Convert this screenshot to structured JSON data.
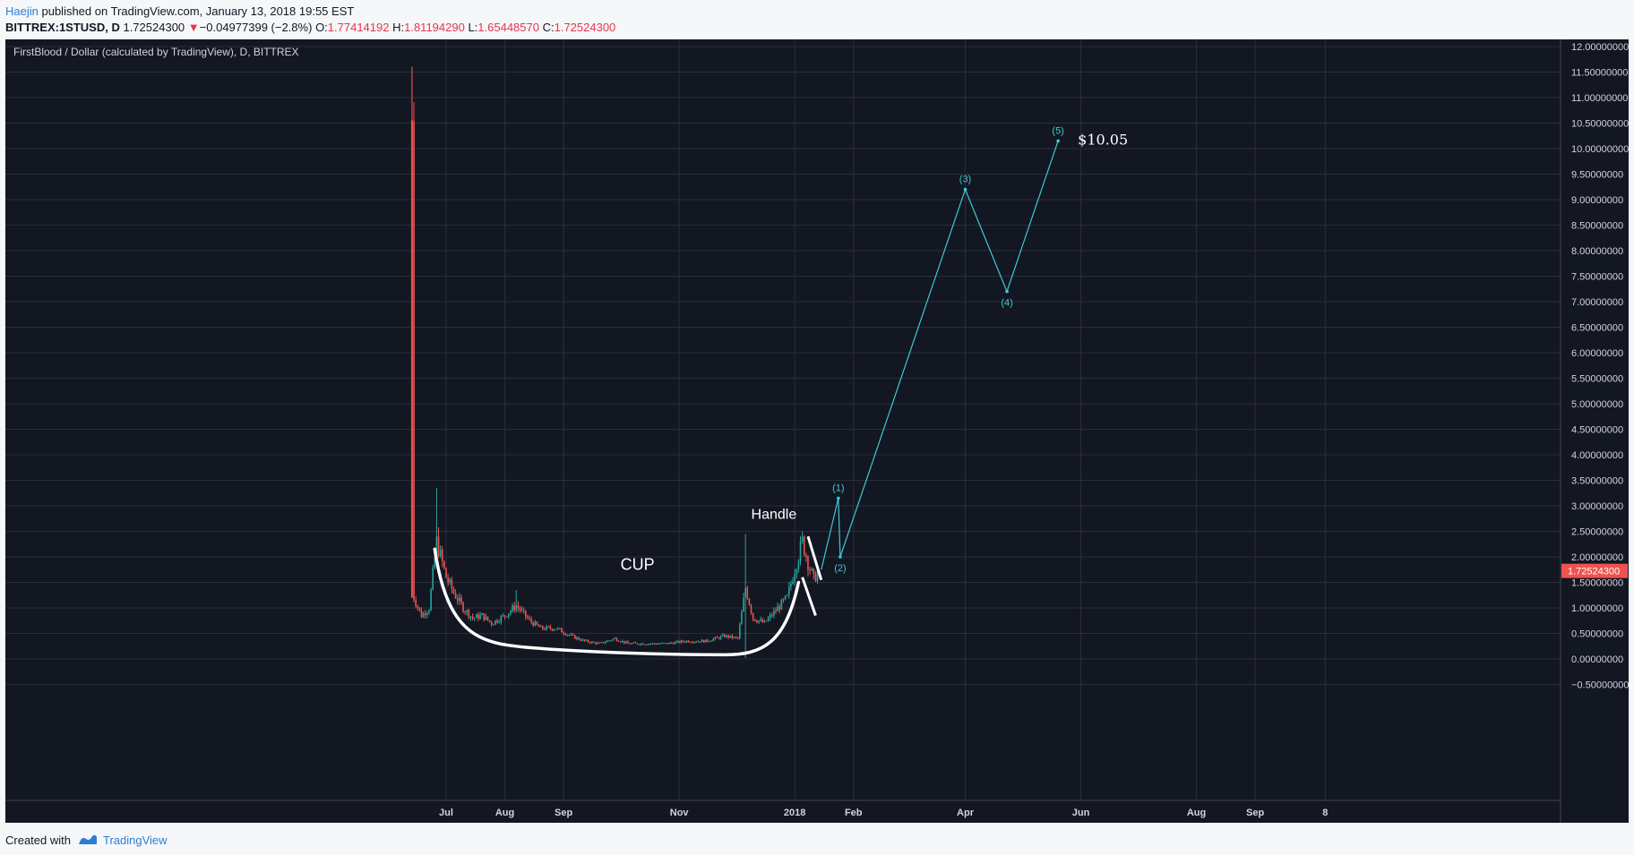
{
  "header": {
    "author": "Haejin",
    "published_text": "published on TradingView.com, January 13, 2018 19:55 EST",
    "symbol": "BITTREX:1STUSD, D",
    "last_price": "1.72524300",
    "change_arrow": "▼",
    "change": "−0.04977399 (−2.8%)",
    "open_label": "O:",
    "open": "1.77414192",
    "high_label": "H:",
    "high": "1.81194290",
    "low_label": "L:",
    "low": "1.65448570",
    "close_label": "C:",
    "close": "1.72524300"
  },
  "footer": {
    "created_with": "Created with",
    "brand": "TradingView"
  },
  "colors": {
    "background": "#131722",
    "grid": "#2a2e39",
    "up": "#26a69a",
    "down": "#ef5350",
    "wave": "#3fc7d6",
    "annotation": "#ffffff",
    "price_tag": "#ef5350"
  },
  "chart_data": {
    "type": "candlestick",
    "title": "FirstBlood / Dollar (calculated by TradingView), D, BITTREX",
    "y_ticks": [
      "12.00000000",
      "11.50000000",
      "11.00000000",
      "10.50000000",
      "10.00000000",
      "9.50000000",
      "9.00000000",
      "8.50000000",
      "8.00000000",
      "7.50000000",
      "7.00000000",
      "6.50000000",
      "6.00000000",
      "5.50000000",
      "5.00000000",
      "4.50000000",
      "4.00000000",
      "3.50000000",
      "3.00000000",
      "2.50000000",
      "2.00000000",
      "1.50000000",
      "1.00000000",
      "0.50000000",
      "0.00000000",
      "−0.50000000"
    ],
    "y_values": [
      12,
      11.5,
      11,
      10.5,
      10,
      9.5,
      9,
      8.5,
      8,
      7.5,
      7,
      6.5,
      6,
      5.5,
      5,
      4.5,
      4,
      3.5,
      3,
      2.5,
      2,
      1.5,
      1,
      0.5,
      0,
      -0.5
    ],
    "ylim": [
      -0.5,
      12
    ],
    "x_ticks": [
      {
        "label": "Jul",
        "date": "2017-07-01"
      },
      {
        "label": "Aug",
        "date": "2017-08-01"
      },
      {
        "label": "Sep",
        "date": "2017-09-01"
      },
      {
        "label": "Nov",
        "date": "2017-11-01"
      },
      {
        "label": "2018",
        "date": "2018-01-01"
      },
      {
        "label": "Feb",
        "date": "2018-02-01"
      },
      {
        "label": "Apr",
        "date": "2018-04-01"
      },
      {
        "label": "Jun",
        "date": "2018-06-01"
      },
      {
        "label": "Aug",
        "date": "2018-08-01"
      },
      {
        "label": "Sep",
        "date": "2018-09-01"
      },
      {
        "label": "8",
        "date": "2018-10-08"
      }
    ],
    "price_series": [
      {
        "date": "2017-06-13",
        "price": 10.55,
        "high": 11.6
      },
      {
        "date": "2017-06-14",
        "price": 1.2
      },
      {
        "date": "2017-06-18",
        "price": 0.85
      },
      {
        "date": "2017-06-22",
        "price": 1.0
      },
      {
        "date": "2017-06-26",
        "price": 2.3,
        "high": 3.35
      },
      {
        "date": "2017-07-01",
        "price": 1.6
      },
      {
        "date": "2017-07-05",
        "price": 1.3
      },
      {
        "date": "2017-07-10",
        "price": 1.0
      },
      {
        "date": "2017-07-15",
        "price": 0.8
      },
      {
        "date": "2017-07-20",
        "price": 0.85
      },
      {
        "date": "2017-07-25",
        "price": 0.7
      },
      {
        "date": "2017-08-01",
        "price": 0.85
      },
      {
        "date": "2017-08-07",
        "price": 1.05,
        "high": 1.35
      },
      {
        "date": "2017-08-14",
        "price": 0.75
      },
      {
        "date": "2017-08-20",
        "price": 0.6
      },
      {
        "date": "2017-08-28",
        "price": 0.6
      },
      {
        "date": "2017-09-05",
        "price": 0.45
      },
      {
        "date": "2017-09-12",
        "price": 0.35
      },
      {
        "date": "2017-09-20",
        "price": 0.3
      },
      {
        "date": "2017-09-28",
        "price": 0.4
      },
      {
        "date": "2017-10-05",
        "price": 0.3
      },
      {
        "date": "2017-10-15",
        "price": 0.3
      },
      {
        "date": "2017-10-25",
        "price": 0.3
      },
      {
        "date": "2017-11-05",
        "price": 0.35
      },
      {
        "date": "2017-11-15",
        "price": 0.35
      },
      {
        "date": "2017-11-25",
        "price": 0.45
      },
      {
        "date": "2017-12-02",
        "price": 0.4
      },
      {
        "date": "2017-12-06",
        "price": 1.4,
        "high": 2.45,
        "low": 0.02
      },
      {
        "date": "2017-12-10",
        "price": 0.8
      },
      {
        "date": "2017-12-16",
        "price": 0.7
      },
      {
        "date": "2017-12-22",
        "price": 0.95
      },
      {
        "date": "2017-12-28",
        "price": 1.2
      },
      {
        "date": "2018-01-02",
        "price": 1.9
      },
      {
        "date": "2018-01-05",
        "price": 2.3,
        "high": 2.5
      },
      {
        "date": "2018-01-08",
        "price": 1.9
      },
      {
        "date": "2018-01-11",
        "price": 1.55
      },
      {
        "date": "2018-01-13",
        "price": 1.725243
      }
    ],
    "wave_path": [
      {
        "label": "",
        "date": "2018-01-15",
        "value": 1.75
      },
      {
        "label": "(1)",
        "date": "2018-01-24",
        "value": 3.15
      },
      {
        "label": "(2)",
        "date": "2018-01-25",
        "value": 2.0
      },
      {
        "label": "(3)",
        "date": "2018-04-01",
        "value": 9.2
      },
      {
        "label": "(4)",
        "date": "2018-04-23",
        "value": 7.2
      },
      {
        "label": "(5)",
        "date": "2018-05-20",
        "value": 10.15
      }
    ],
    "annotations": {
      "cup": "CUP",
      "handle": "Handle",
      "target": "$10.05"
    },
    "last_price_tag": "1.72524300"
  }
}
